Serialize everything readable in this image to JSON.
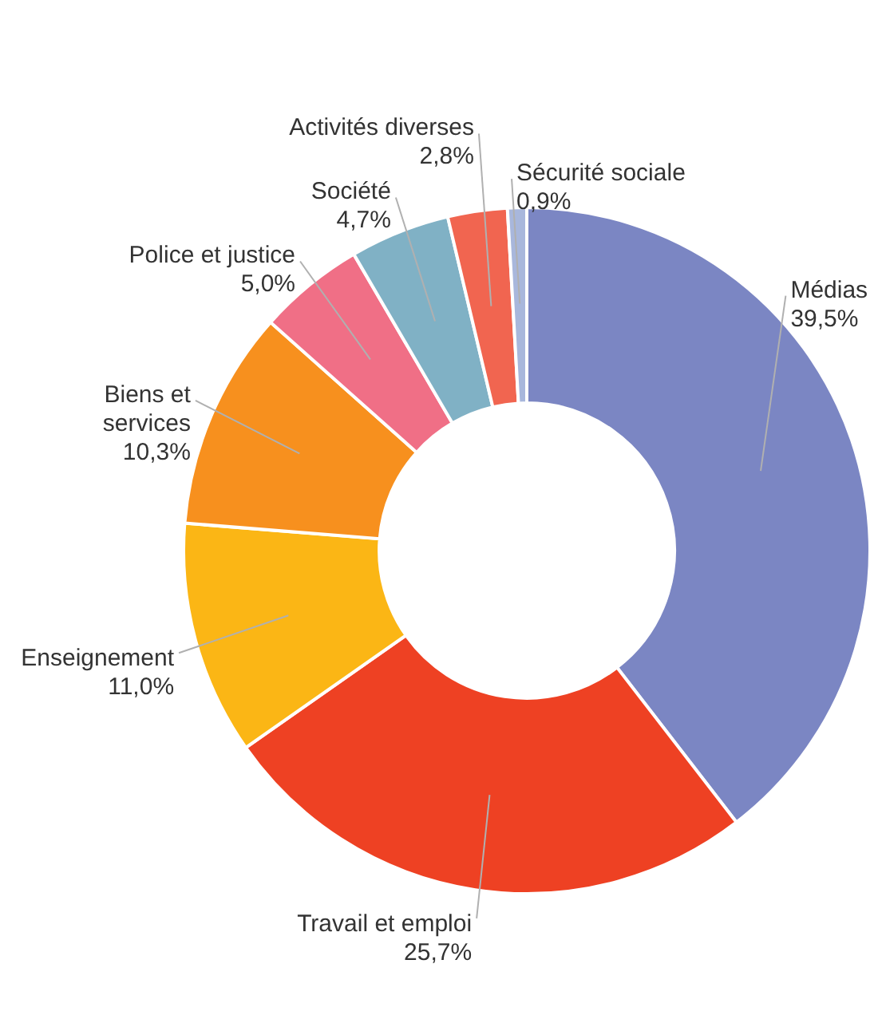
{
  "chart_data": {
    "type": "donut",
    "categories": [
      "Médias",
      "Travail et emploi",
      "Enseignement",
      "Biens et services",
      "Police et justice",
      "Société",
      "Activités diverses",
      "Sécurité sociale"
    ],
    "values": [
      39.5,
      25.7,
      11.0,
      10.3,
      5.0,
      4.7,
      2.8,
      0.9
    ],
    "colors": [
      "#7b86c3",
      "#ee4123",
      "#fbb615",
      "#f7901e",
      "#f06f86",
      "#80b1c5",
      "#f16550",
      "#a8b7dc"
    ],
    "value_labels": [
      "39,5%",
      "25,7%",
      "11,0%",
      "10,3%",
      "5,0%",
      "4,7%",
      "2,8%",
      "0,9%"
    ]
  }
}
